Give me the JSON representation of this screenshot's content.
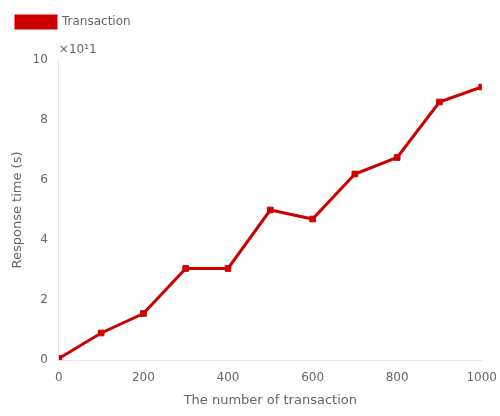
{
  "chart_data": {
    "type": "line",
    "x": [
      0,
      100,
      200,
      300,
      400,
      500,
      600,
      700,
      800,
      900,
      1000
    ],
    "series": [
      {
        "name": "Transaction",
        "color": "#cc0000",
        "values": [
          0.05,
          0.9,
          1.55,
          3.05,
          3.05,
          5.0,
          4.7,
          6.2,
          6.75,
          8.6,
          9.1
        ],
        "marker": "square",
        "line_style": "solid"
      }
    ],
    "xlabel": "The number of transaction",
    "ylabel": "Response time (s)",
    "annotations": [
      "×10¹1"
    ],
    "xlim": [
      0,
      1000
    ],
    "ylim": [
      0,
      10
    ],
    "xticks": [
      0,
      200,
      400,
      600,
      800,
      1000
    ],
    "yticks": [
      0,
      2,
      4,
      6,
      8,
      10
    ],
    "grid": false,
    "legend": "upper left"
  }
}
